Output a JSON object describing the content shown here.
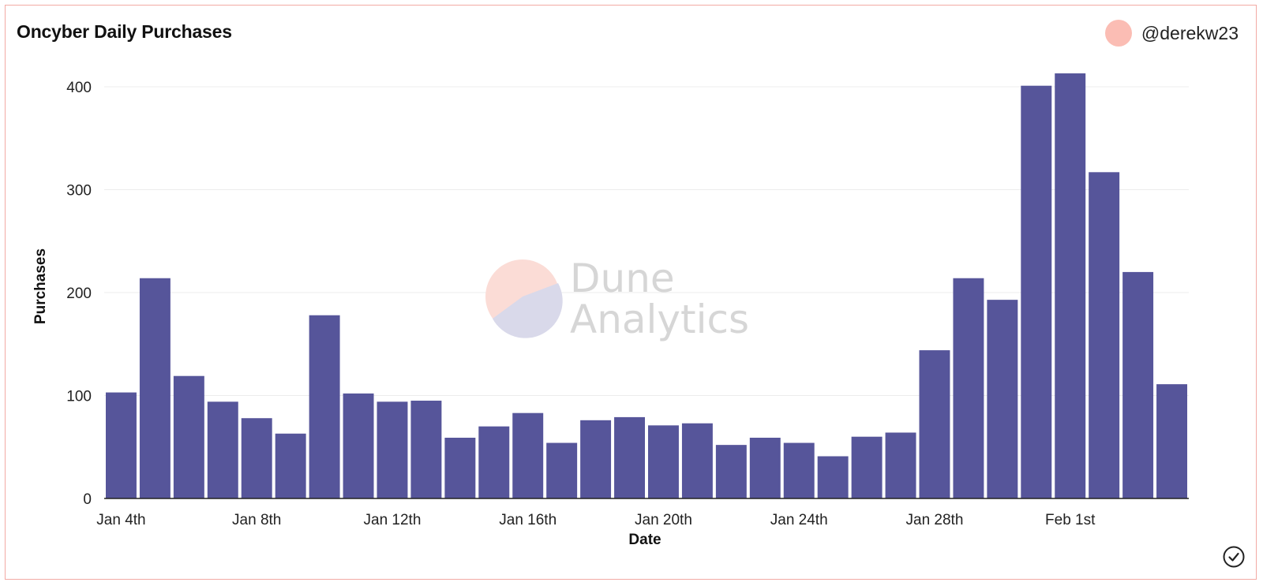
{
  "header": {
    "title": "Oncyber Daily Purchases",
    "author": "@derekw23"
  },
  "watermark": {
    "line1": "Dune",
    "line2": "Analytics"
  },
  "colors": {
    "bar": "#56559a",
    "border": "#f2aaa4",
    "avatar": "#fbbdb4"
  },
  "chart_data": {
    "type": "bar",
    "title": "Oncyber Daily Purchases",
    "xlabel": "Date",
    "ylabel": "Purchases",
    "ylim": [
      0,
      400
    ],
    "yticks": [
      0,
      100,
      200,
      300,
      400
    ],
    "grid": true,
    "categories": [
      "Jan 4th",
      "Jan 5th",
      "Jan 6th",
      "Jan 7th",
      "Jan 8th",
      "Jan 9th",
      "Jan 10th",
      "Jan 11th",
      "Jan 12th",
      "Jan 13th",
      "Jan 14th",
      "Jan 15th",
      "Jan 16th",
      "Jan 17th",
      "Jan 18th",
      "Jan 19th",
      "Jan 20th",
      "Jan 21st",
      "Jan 22nd",
      "Jan 23rd",
      "Jan 24th",
      "Jan 25th",
      "Jan 26th",
      "Jan 27th",
      "Jan 28th",
      "Jan 29th",
      "Jan 30th",
      "Jan 31st",
      "Feb 1st",
      "Feb 2nd",
      "Feb 3rd",
      "Feb 4th"
    ],
    "xtick_labels": [
      "Jan 4th",
      "Jan 8th",
      "Jan 12th",
      "Jan 16th",
      "Jan 20th",
      "Jan 24th",
      "Jan 28th",
      "Feb 1st"
    ],
    "values": [
      103,
      214,
      119,
      94,
      78,
      63,
      178,
      102,
      94,
      95,
      59,
      70,
      83,
      54,
      76,
      79,
      71,
      73,
      52,
      59,
      54,
      41,
      60,
      64,
      144,
      214,
      193,
      401,
      413,
      317,
      220,
      111
    ]
  }
}
